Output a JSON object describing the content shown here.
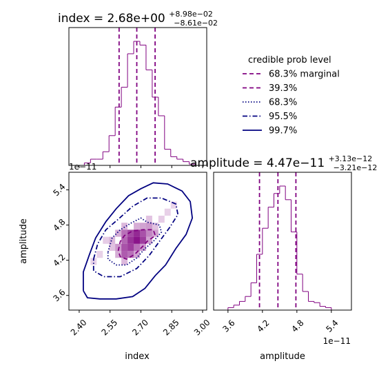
{
  "colors": {
    "purple": "#800080",
    "navy": "#000080",
    "axis": "#000000",
    "heat_light": "#f0d9f0",
    "heat_dark": "#800080"
  },
  "chart_data": [
    {
      "type": "histogram",
      "title_main": "index = 2.68e+00",
      "title_sup": "+8.98e−02",
      "title_sub": "−8.61e−02",
      "xlim": [
        2.35,
        3.02
      ],
      "x": [
        2.38,
        2.41,
        2.44,
        2.47,
        2.5,
        2.53,
        2.56,
        2.59,
        2.62,
        2.65,
        2.68,
        2.71,
        2.74,
        2.77,
        2.8,
        2.83,
        2.86,
        2.89,
        2.92,
        2.95,
        2.98
      ],
      "values": [
        0,
        0,
        0.02,
        0.05,
        0.05,
        0.11,
        0.24,
        0.47,
        0.63,
        0.9,
        1.0,
        0.97,
        0.77,
        0.55,
        0.4,
        0.13,
        0.07,
        0.05,
        0.03,
        0.01,
        0
      ],
      "quantile_lines": [
        2.594,
        2.68,
        2.769
      ]
    },
    {
      "type": "heatmap",
      "xlabel": "index",
      "ylabel": "amplitude",
      "xlim": [
        2.35,
        3.02
      ],
      "ylim": [
        3.35,
        5.7
      ],
      "xticks": [
        "2.40",
        "2.55",
        "2.70",
        "2.85",
        "3.00"
      ],
      "xtick_values": [
        2.4,
        2.55,
        2.7,
        2.85,
        3.0
      ],
      "yticks": [
        "3.6",
        "4.2",
        "4.8",
        "5.4"
      ],
      "ytick_values": [
        3.6,
        4.2,
        4.8,
        5.4
      ],
      "offset_label": "1e−11",
      "density_cells": [
        {
          "x": 2.62,
          "y": 4.66,
          "v": 0.55
        },
        {
          "x": 2.65,
          "y": 4.66,
          "v": 0.75
        },
        {
          "x": 2.68,
          "y": 4.66,
          "v": 0.9
        },
        {
          "x": 2.71,
          "y": 4.66,
          "v": 0.7
        },
        {
          "x": 2.65,
          "y": 4.54,
          "v": 0.85
        },
        {
          "x": 2.68,
          "y": 4.54,
          "v": 1.0
        },
        {
          "x": 2.71,
          "y": 4.54,
          "v": 0.8
        },
        {
          "x": 2.62,
          "y": 4.54,
          "v": 0.6
        },
        {
          "x": 2.62,
          "y": 4.42,
          "v": 0.7
        },
        {
          "x": 2.65,
          "y": 4.42,
          "v": 0.8
        },
        {
          "x": 2.68,
          "y": 4.42,
          "v": 0.55
        },
        {
          "x": 2.59,
          "y": 4.42,
          "v": 0.35
        },
        {
          "x": 2.62,
          "y": 4.3,
          "v": 0.65
        },
        {
          "x": 2.65,
          "y": 4.3,
          "v": 0.55
        },
        {
          "x": 2.74,
          "y": 4.66,
          "v": 0.45
        },
        {
          "x": 2.77,
          "y": 4.66,
          "v": 0.3
        },
        {
          "x": 2.71,
          "y": 4.78,
          "v": 0.3
        },
        {
          "x": 2.74,
          "y": 4.78,
          "v": 0.35
        },
        {
          "x": 2.59,
          "y": 4.66,
          "v": 0.25
        },
        {
          "x": 2.56,
          "y": 4.54,
          "v": 0.2
        },
        {
          "x": 2.62,
          "y": 4.78,
          "v": 0.2
        },
        {
          "x": 2.68,
          "y": 4.78,
          "v": 0.25
        },
        {
          "x": 2.59,
          "y": 4.3,
          "v": 0.25
        },
        {
          "x": 2.68,
          "y": 4.3,
          "v": 0.3
        },
        {
          "x": 2.71,
          "y": 4.42,
          "v": 0.35
        },
        {
          "x": 2.74,
          "y": 4.54,
          "v": 0.3
        },
        {
          "x": 2.56,
          "y": 4.42,
          "v": 0.15
        },
        {
          "x": 2.62,
          "y": 4.18,
          "v": 0.2
        },
        {
          "x": 2.77,
          "y": 4.78,
          "v": 0.15
        },
        {
          "x": 2.74,
          "y": 4.9,
          "v": 0.15
        },
        {
          "x": 2.53,
          "y": 4.54,
          "v": 0.1
        },
        {
          "x": 2.8,
          "y": 4.9,
          "v": 0.1
        },
        {
          "x": 2.83,
          "y": 5.02,
          "v": 0.08
        },
        {
          "x": 2.5,
          "y": 4.3,
          "v": 0.08
        },
        {
          "x": 2.47,
          "y": 4.18,
          "v": 0.06
        },
        {
          "x": 2.86,
          "y": 5.14,
          "v": 0.06
        }
      ],
      "contours": [
        {
          "level": "39.3%",
          "style": "dashed",
          "color": "purple",
          "points": [
            [
              2.59,
              4.36
            ],
            [
              2.6,
              4.52
            ],
            [
              2.62,
              4.62
            ],
            [
              2.66,
              4.7
            ],
            [
              2.71,
              4.72
            ],
            [
              2.76,
              4.72
            ],
            [
              2.77,
              4.62
            ],
            [
              2.73,
              4.52
            ],
            [
              2.71,
              4.44
            ],
            [
              2.67,
              4.3
            ],
            [
              2.63,
              4.22
            ],
            [
              2.6,
              4.26
            ],
            [
              2.59,
              4.36
            ]
          ]
        },
        {
          "level": "68.3%",
          "style": "dotted",
          "color": "navy",
          "points": [
            [
              2.54,
              4.34
            ],
            [
              2.56,
              4.58
            ],
            [
              2.6,
              4.72
            ],
            [
              2.65,
              4.83
            ],
            [
              2.7,
              4.92
            ],
            [
              2.73,
              4.85
            ],
            [
              2.79,
              4.8
            ],
            [
              2.8,
              4.68
            ],
            [
              2.76,
              4.52
            ],
            [
              2.72,
              4.4
            ],
            [
              2.68,
              4.24
            ],
            [
              2.63,
              4.12
            ],
            [
              2.58,
              4.12
            ],
            [
              2.54,
              4.22
            ],
            [
              2.54,
              4.34
            ]
          ]
        },
        {
          "level": "95.5%",
          "style": "dashdot",
          "color": "navy",
          "points": [
            [
              2.47,
              4.22
            ],
            [
              2.49,
              4.48
            ],
            [
              2.53,
              4.72
            ],
            [
              2.59,
              4.9
            ],
            [
              2.66,
              5.12
            ],
            [
              2.73,
              5.26
            ],
            [
              2.8,
              5.26
            ],
            [
              2.87,
              5.16
            ],
            [
              2.88,
              4.98
            ],
            [
              2.84,
              4.76
            ],
            [
              2.79,
              4.52
            ],
            [
              2.74,
              4.28
            ],
            [
              2.68,
              4.06
            ],
            [
              2.6,
              3.92
            ],
            [
              2.52,
              3.92
            ],
            [
              2.47,
              4.02
            ],
            [
              2.47,
              4.22
            ]
          ]
        },
        {
          "level": "99.7%",
          "style": "solid",
          "color": "navy",
          "points": [
            [
              2.42,
              3.68
            ],
            [
              2.42,
              4.0
            ],
            [
              2.45,
              4.3
            ],
            [
              2.48,
              4.58
            ],
            [
              2.53,
              4.86
            ],
            [
              2.58,
              5.08
            ],
            [
              2.64,
              5.3
            ],
            [
              2.7,
              5.42
            ],
            [
              2.76,
              5.52
            ],
            [
              2.83,
              5.5
            ],
            [
              2.9,
              5.38
            ],
            [
              2.94,
              5.2
            ],
            [
              2.95,
              4.92
            ],
            [
              2.92,
              4.64
            ],
            [
              2.87,
              4.4
            ],
            [
              2.82,
              4.12
            ],
            [
              2.77,
              3.94
            ],
            [
              2.72,
              3.72
            ],
            [
              2.66,
              3.58
            ],
            [
              2.58,
              3.54
            ],
            [
              2.5,
              3.54
            ],
            [
              2.44,
              3.56
            ],
            [
              2.42,
              3.68
            ]
          ]
        }
      ]
    },
    {
      "type": "histogram",
      "title_main": "amplitude = 4.47e−11",
      "title_sup": "+3.13e−12",
      "title_sub": "−3.21e−12",
      "xlabel": "amplitude",
      "xlim": [
        3.35,
        5.75
      ],
      "xticks": [
        "3.6",
        "4.2",
        "4.8",
        "5.4"
      ],
      "xtick_values": [
        3.6,
        4.2,
        4.8,
        5.4
      ],
      "offset_label": "1e−11",
      "x": [
        3.55,
        3.65,
        3.75,
        3.85,
        3.95,
        4.05,
        4.15,
        4.25,
        4.35,
        4.45,
        4.55,
        4.65,
        4.75,
        4.85,
        4.95,
        5.05,
        5.15,
        5.25,
        5.35,
        5.45
      ],
      "values": [
        0,
        0.02,
        0.04,
        0.07,
        0.11,
        0.22,
        0.45,
        0.66,
        0.83,
        0.94,
        1.0,
        0.89,
        0.63,
        0.29,
        0.15,
        0.07,
        0.06,
        0.03,
        0.02,
        0
      ],
      "quantile_lines": [
        4.149,
        4.47,
        4.783
      ]
    }
  ],
  "legend": {
    "title": "credible prob level",
    "entries": [
      {
        "label": "68.3% marginal",
        "style": "dashed",
        "color": "purple"
      },
      {
        "label": "39.3%",
        "style": "dashed",
        "color": "purple"
      },
      {
        "label": "68.3%",
        "style": "dotted",
        "color": "navy"
      },
      {
        "label": "95.5%",
        "style": "dashdot",
        "color": "navy"
      },
      {
        "label": "99.7%",
        "style": "solid",
        "color": "navy"
      }
    ]
  }
}
